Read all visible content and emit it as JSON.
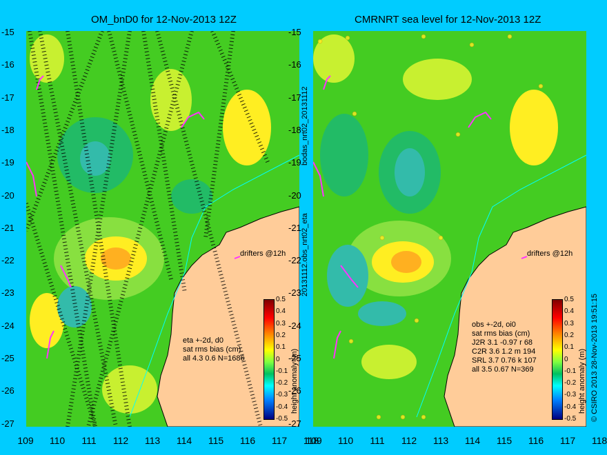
{
  "left_panel": {
    "title": "OM_bnD0 for 12-Nov-2013 12Z",
    "drifters_label": "drifters @12h",
    "stats": [
      "eta +-2d, d0",
      "sat rms bias (cm)",
      "all 4.3 0.6 N=1686"
    ],
    "colorbar_label": "height anomaly (m)"
  },
  "right_panel": {
    "title": "CMRNRT sea level  for 12-Nov-2013 12Z",
    "drifters_label": "drifters @12h",
    "stats": [
      "obs +-2d, oi0",
      "sat rms bias (cm)",
      "J2R   3.1 -0.97 r 68",
      "C2R   3.6 1.2 m 194",
      "SRL   3.7 0.76 k 107",
      "all   3.5 0.67 N=369"
    ],
    "colorbar_label": "height anomaly (m)"
  },
  "side_labels": {
    "top": "bodas_nrt02_20131112",
    "bottom": "20131112.obs_nrt02_eta",
    "credit": "© CSIRO 2013   28-Nov-2013 19:51:15"
  },
  "axes": {
    "y_ticks": [
      "-15",
      "-16",
      "-17",
      "-18",
      "-19",
      "-20",
      "-21",
      "-22",
      "-23",
      "-24",
      "-25",
      "-26",
      "-27"
    ],
    "x_ticks": [
      "109",
      "110",
      "111",
      "112",
      "113",
      "114",
      "115",
      "116",
      "117",
      "118"
    ]
  },
  "colorbar_ticks": [
    "0.5",
    "0.4",
    "0.3",
    "0.2",
    "0.1",
    "0",
    "-0.1",
    "-0.2",
    "-0.3",
    "-0.4",
    "-0.5"
  ],
  "colors": {
    "background": "#00ccff",
    "land": "#ffcc99",
    "ocean": "#44cc22",
    "drifters": "#ff33ff",
    "coast": "#000000"
  }
}
